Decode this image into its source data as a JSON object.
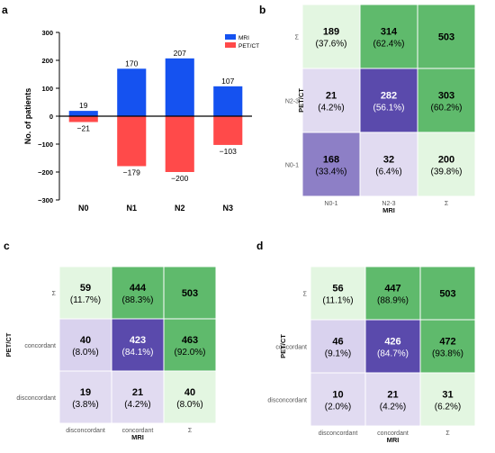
{
  "panel_labels": [
    "a",
    "b",
    "c",
    "d"
  ],
  "chart_data": [
    {
      "type": "bar",
      "panel": "a",
      "categories": [
        "N0",
        "N1",
        "N2",
        "N3"
      ],
      "series": [
        {
          "name": "MRI",
          "color": "#1552f0",
          "values": [
            19,
            170,
            207,
            107
          ],
          "labels": [
            "19",
            "170",
            "207",
            "107"
          ]
        },
        {
          "name": "PET/CT",
          "color": "#ff4a4a",
          "values": [
            -21,
            -179,
            -200,
            -103
          ],
          "labels": [
            "−21",
            "−179",
            "−200",
            "−103"
          ]
        }
      ],
      "ylabel": "No. of patients",
      "ylim": [
        -300,
        300
      ],
      "yticks": [
        300,
        200,
        100,
        0,
        -100,
        -200,
        -300
      ],
      "ytick_labels": [
        "300",
        "200",
        "100",
        "0",
        "−100",
        "−200",
        "−300"
      ],
      "legend_position": "top-right",
      "grid": false
    },
    {
      "type": "heatmap",
      "panel": "b",
      "xlabel": "MRI",
      "ylabel": "PET/CT",
      "x_categories": [
        "N0-1",
        "N2-3",
        "Σ"
      ],
      "y_categories": [
        "Σ",
        "N2-3",
        "N0-1"
      ],
      "cells": [
        [
          {
            "count": "189",
            "pct": "(37.6%)",
            "color": "#e3f6e1"
          },
          {
            "count": "314",
            "pct": "(62.4%)",
            "color": "#5fba6c"
          },
          {
            "count": "503",
            "pct": "",
            "color": "#5fba6c"
          }
        ],
        [
          {
            "count": "21",
            "pct": "(4.2%)",
            "color": "#e1dbf1"
          },
          {
            "count": "282",
            "pct": "(56.1%)",
            "color": "#5a4aac"
          },
          {
            "count": "303",
            "pct": "(60.2%)",
            "color": "#5fba6c"
          }
        ],
        [
          {
            "count": "168",
            "pct": "(33.4%)",
            "color": "#8d7fc6"
          },
          {
            "count": "32",
            "pct": "(6.4%)",
            "color": "#e1dbf1"
          },
          {
            "count": "200",
            "pct": "(39.8%)",
            "color": "#e3f6e1"
          }
        ]
      ]
    },
    {
      "type": "heatmap",
      "panel": "c",
      "xlabel": "MRI",
      "ylabel": "PET/CT",
      "x_categories": [
        "disconcordant",
        "concordant",
        "Σ"
      ],
      "y_categories": [
        "Σ",
        "concordant",
        "disconcordant"
      ],
      "cells": [
        [
          {
            "count": "59",
            "pct": "(11.7%)",
            "color": "#e3f6e1"
          },
          {
            "count": "444",
            "pct": "(88.3%)",
            "color": "#5fba6c"
          },
          {
            "count": "503",
            "pct": "",
            "color": "#5fba6c"
          }
        ],
        [
          {
            "count": "40",
            "pct": "(8.0%)",
            "color": "#d9d2ee"
          },
          {
            "count": "423",
            "pct": "(84.1%)",
            "color": "#5a4aac"
          },
          {
            "count": "463",
            "pct": "(92.0%)",
            "color": "#5fba6c"
          }
        ],
        [
          {
            "count": "19",
            "pct": "(3.8%)",
            "color": "#e1dbf1"
          },
          {
            "count": "21",
            "pct": "(4.2%)",
            "color": "#e1dbf1"
          },
          {
            "count": "40",
            "pct": "(8.0%)",
            "color": "#e3f6e1"
          }
        ]
      ]
    },
    {
      "type": "heatmap",
      "panel": "d",
      "xlabel": "MRI",
      "ylabel": "PET/CT",
      "x_categories": [
        "disconcordant",
        "concordant",
        "Σ"
      ],
      "y_categories": [
        "Σ",
        "concordant",
        "disconcordant"
      ],
      "cells": [
        [
          {
            "count": "56",
            "pct": "(11.1%)",
            "color": "#e3f6e1"
          },
          {
            "count": "447",
            "pct": "(88.9%)",
            "color": "#5fba6c"
          },
          {
            "count": "503",
            "pct": "",
            "color": "#5fba6c"
          }
        ],
        [
          {
            "count": "46",
            "pct": "(9.1%)",
            "color": "#d9d2ee"
          },
          {
            "count": "426",
            "pct": "(84.7%)",
            "color": "#5a4aac"
          },
          {
            "count": "472",
            "pct": "(93.8%)",
            "color": "#5fba6c"
          }
        ],
        [
          {
            "count": "10",
            "pct": "(2.0%)",
            "color": "#e1dbf1"
          },
          {
            "count": "21",
            "pct": "(4.2%)",
            "color": "#e1dbf1"
          },
          {
            "count": "31",
            "pct": "(6.2%)",
            "color": "#e3f6e1"
          }
        ]
      ]
    }
  ]
}
